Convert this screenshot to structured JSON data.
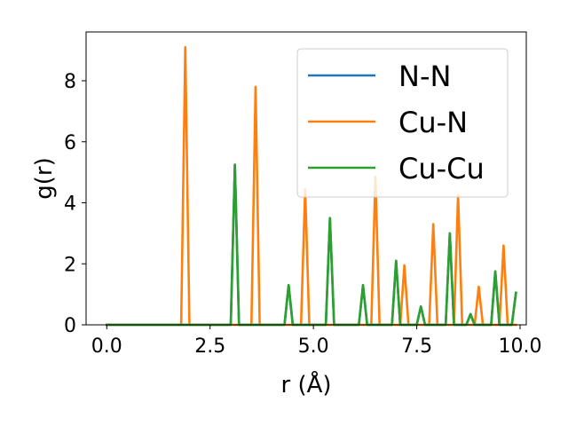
{
  "chart_data": {
    "type": "line",
    "xlabel": "r (Å)",
    "ylabel": "g(r)",
    "xlim": [
      -0.5,
      10.15
    ],
    "ylim": [
      0,
      9.6
    ],
    "xticks": [
      0.0,
      2.5,
      5.0,
      7.5,
      10.0
    ],
    "xtick_labels": [
      "0.0",
      "2.5",
      "5.0",
      "7.5",
      "10.0"
    ],
    "yticks": [
      0,
      2,
      4,
      6,
      8
    ],
    "ytick_labels": [
      "0",
      "2",
      "4",
      "6",
      "8"
    ],
    "grid": false,
    "legend_placement": "top-right",
    "x": [
      0.0,
      0.1,
      0.2,
      0.3,
      0.4,
      0.5,
      0.6,
      0.7,
      0.8,
      0.9,
      1.0,
      1.1,
      1.2,
      1.3,
      1.4,
      1.5,
      1.6,
      1.7,
      1.8,
      1.9,
      2.0,
      2.1,
      2.2,
      2.3,
      2.4,
      2.5,
      2.6,
      2.7,
      2.8,
      2.9,
      3.0,
      3.1,
      3.2,
      3.3,
      3.4,
      3.5,
      3.6,
      3.7,
      3.8,
      3.9,
      4.0,
      4.1,
      4.2,
      4.3,
      4.4,
      4.5,
      4.6,
      4.7,
      4.8,
      4.9,
      5.0,
      5.1,
      5.2,
      5.3,
      5.4,
      5.5,
      5.6,
      5.7,
      5.8,
      5.9,
      6.0,
      6.1,
      6.2,
      6.3,
      6.4,
      6.5,
      6.6,
      6.7,
      6.8,
      6.9,
      7.0,
      7.1,
      7.2,
      7.3,
      7.4,
      7.5,
      7.6,
      7.7,
      7.8,
      7.9,
      8.0,
      8.1,
      8.2,
      8.3,
      8.4,
      8.5,
      8.6,
      8.7,
      8.8,
      8.9,
      9.0,
      9.1,
      9.2,
      9.3,
      9.4,
      9.5,
      9.6,
      9.7,
      9.8,
      9.9
    ],
    "series": [
      {
        "name": "N-N",
        "color": "#1f77b4",
        "values": [
          0,
          0,
          0,
          0,
          0,
          0,
          0,
          0,
          0,
          0,
          0,
          0,
          0,
          0,
          0,
          0,
          0,
          0,
          0,
          0,
          0,
          0,
          0,
          0,
          0,
          0,
          0,
          0,
          0,
          0,
          0,
          5.25,
          0,
          0,
          0,
          0,
          0,
          0,
          0,
          0,
          0,
          0,
          0,
          0,
          1.3,
          0,
          0,
          0,
          0,
          0,
          0,
          0,
          0,
          0,
          3.5,
          0,
          0,
          0,
          0,
          0,
          0,
          0,
          1.3,
          0,
          0,
          0,
          0,
          0,
          0,
          0,
          2.1,
          0,
          0,
          0,
          0,
          0,
          0.6,
          0,
          0,
          0,
          0,
          0,
          0,
          3.0,
          0,
          0,
          0,
          0,
          0.35,
          0,
          0,
          0,
          0,
          0,
          1.75,
          0,
          0,
          0,
          0,
          1.05
        ]
      },
      {
        "name": "Cu-N",
        "color": "#ff7f0e",
        "values": [
          0,
          0,
          0,
          0,
          0,
          0,
          0,
          0,
          0,
          0,
          0,
          0,
          0,
          0,
          0,
          0,
          0,
          0,
          0,
          9.1,
          0,
          0,
          0,
          0,
          0,
          0,
          0,
          0,
          0,
          0,
          0,
          0,
          0,
          0,
          0,
          0,
          7.8,
          0,
          0,
          0,
          0,
          0,
          0,
          0,
          0,
          0,
          0,
          0,
          4.45,
          0,
          0,
          0,
          0,
          0,
          0,
          0,
          0,
          0,
          0,
          0,
          0,
          0,
          0,
          0,
          0,
          4.85,
          0,
          0,
          0,
          0,
          0,
          0,
          1.95,
          0,
          0,
          0,
          0,
          0,
          0,
          3.3,
          0,
          0,
          0,
          0,
          0,
          4.25,
          0,
          0,
          0,
          0,
          1.25,
          0,
          0,
          0,
          0,
          0,
          2.6,
          0,
          0,
          0
        ]
      },
      {
        "name": "Cu-Cu",
        "color": "#2ca02c",
        "values": [
          0,
          0,
          0,
          0,
          0,
          0,
          0,
          0,
          0,
          0,
          0,
          0,
          0,
          0,
          0,
          0,
          0,
          0,
          0,
          0,
          0,
          0,
          0,
          0,
          0,
          0,
          0,
          0,
          0,
          0,
          0,
          5.25,
          0,
          0,
          0,
          0,
          0,
          0,
          0,
          0,
          0,
          0,
          0,
          0,
          1.3,
          0,
          0,
          0,
          0,
          0,
          0,
          0,
          0,
          0,
          3.5,
          0,
          0,
          0,
          0,
          0,
          0,
          0,
          1.3,
          0,
          0,
          0,
          0,
          0,
          0,
          0,
          2.1,
          0,
          0,
          0,
          0,
          0,
          0.6,
          0,
          0,
          0,
          0,
          0,
          0,
          3.0,
          0,
          0,
          0,
          0,
          0.35,
          0,
          0,
          0,
          0,
          0,
          1.75,
          0,
          0,
          0,
          0,
          1.05
        ]
      }
    ]
  }
}
